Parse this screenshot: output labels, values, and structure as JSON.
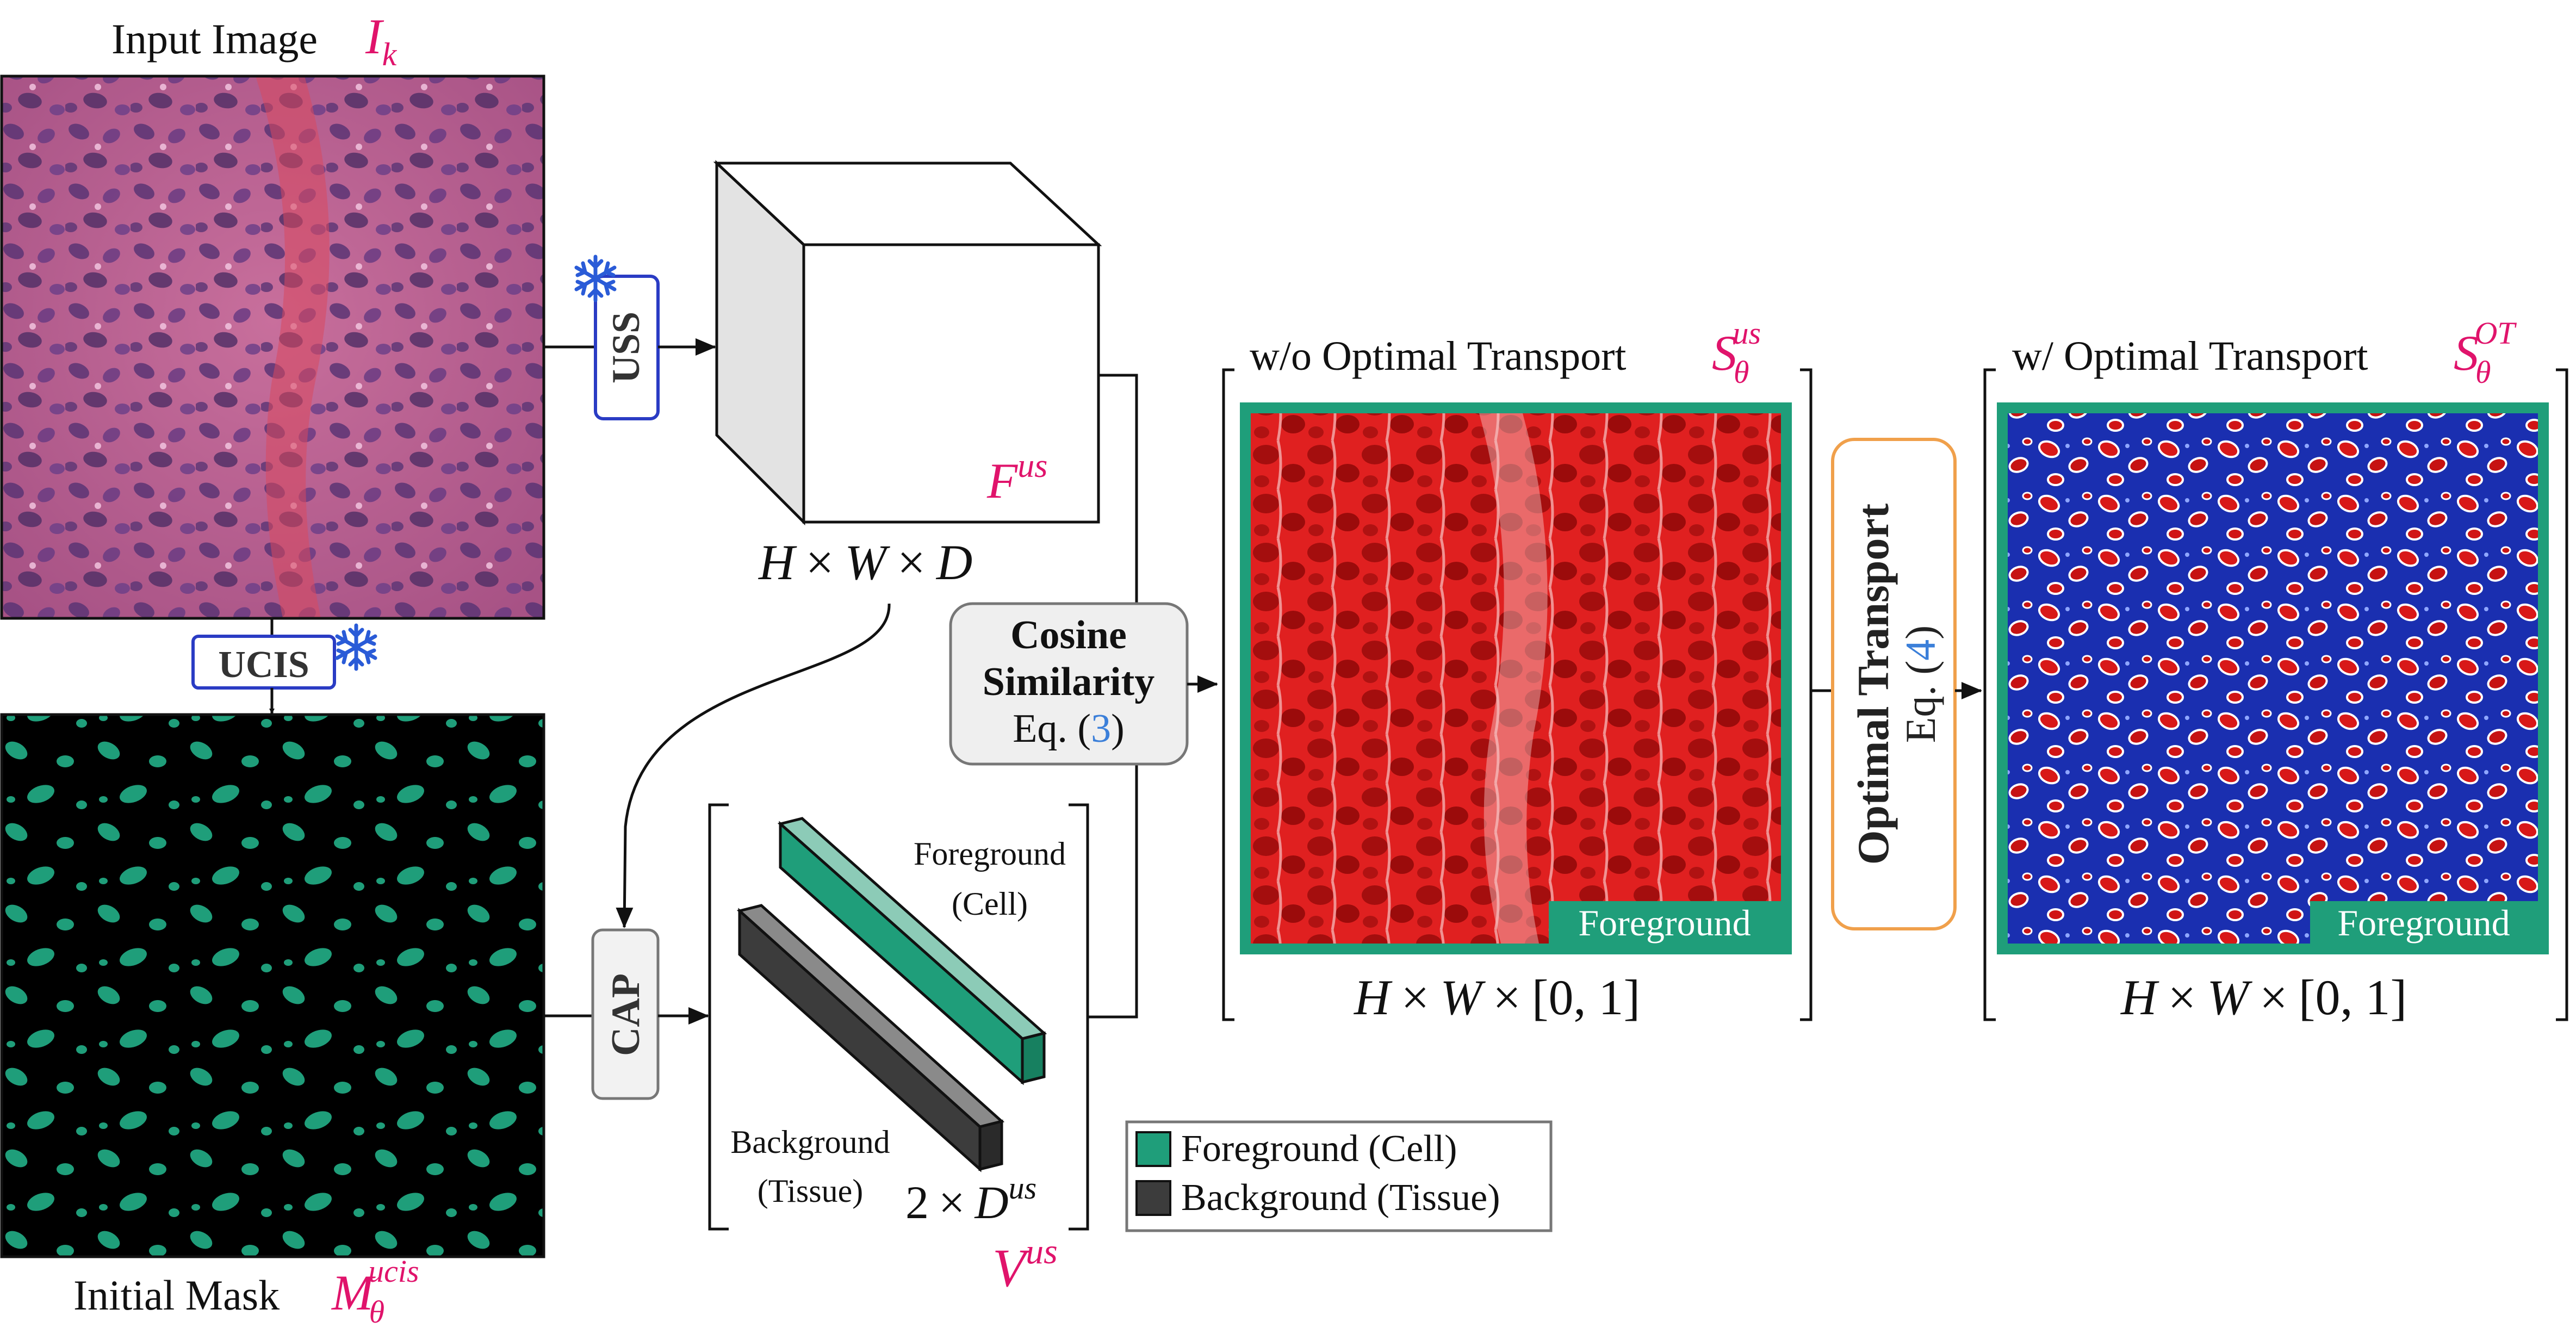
{
  "input_image": {
    "label": "Input Image",
    "symbol": "I",
    "subscript": "k"
  },
  "initial_mask": {
    "label": "Initial Mask",
    "symbol": "M",
    "subscript": "θ",
    "superscript": "ucis"
  },
  "modules": {
    "uss": "USS",
    "ucis": "UCIS",
    "cap": "CAP",
    "cosine": {
      "line1": "Cosine",
      "line2": "Similarity",
      "eq_prefix": "Eq. (",
      "eq_ref": "3",
      "eq_suffix": ")"
    },
    "ot": {
      "title": "Optimal Transport",
      "eq_prefix": "Eq. (",
      "eq_ref": "4",
      "eq_suffix": ")"
    }
  },
  "features": {
    "symbol": "F",
    "superscript": "us",
    "dim_H": "H",
    "times1": "×",
    "dim_W": "W",
    "times2": "×",
    "dim_D": "D"
  },
  "prototypes": {
    "foreground_line1": "Foreground",
    "foreground_line2": "(Cell)",
    "background_line1": "Background",
    "background_line2": "(Tissue)",
    "dim_num": "2",
    "dim_times": "×",
    "dim_sym": "D",
    "dim_sup": "us",
    "symbol": "V",
    "superscript": "us"
  },
  "map_wo": {
    "title": "w/o Optimal Transport",
    "symbol": "S",
    "subscript": "θ",
    "superscript": "us",
    "badge": "Foreground",
    "dim_H": "H",
    "times1": "×",
    "dim_W": "W",
    "times2": "×",
    "range": "[0, 1]"
  },
  "map_w": {
    "title": "w/ Optimal Transport",
    "symbol": "S",
    "subscript": "θ",
    "superscript": "OT",
    "badge": "Foreground",
    "dim_H": "H",
    "times1": "×",
    "dim_W": "W",
    "times2": "×",
    "range": "[0, 1]"
  },
  "legend": {
    "items": [
      {
        "label": "Foreground (Cell)",
        "color": "#1f9e7a"
      },
      {
        "label": "Background (Tissue)",
        "color": "#3c3c3c"
      }
    ]
  },
  "colors": {
    "accent_pink": "#e0136b",
    "teal": "#1f9e7a",
    "frozen_blue": "#2a5bd7",
    "ot_orange": "#f0a04b",
    "ref_blue": "#3b7fd9"
  }
}
